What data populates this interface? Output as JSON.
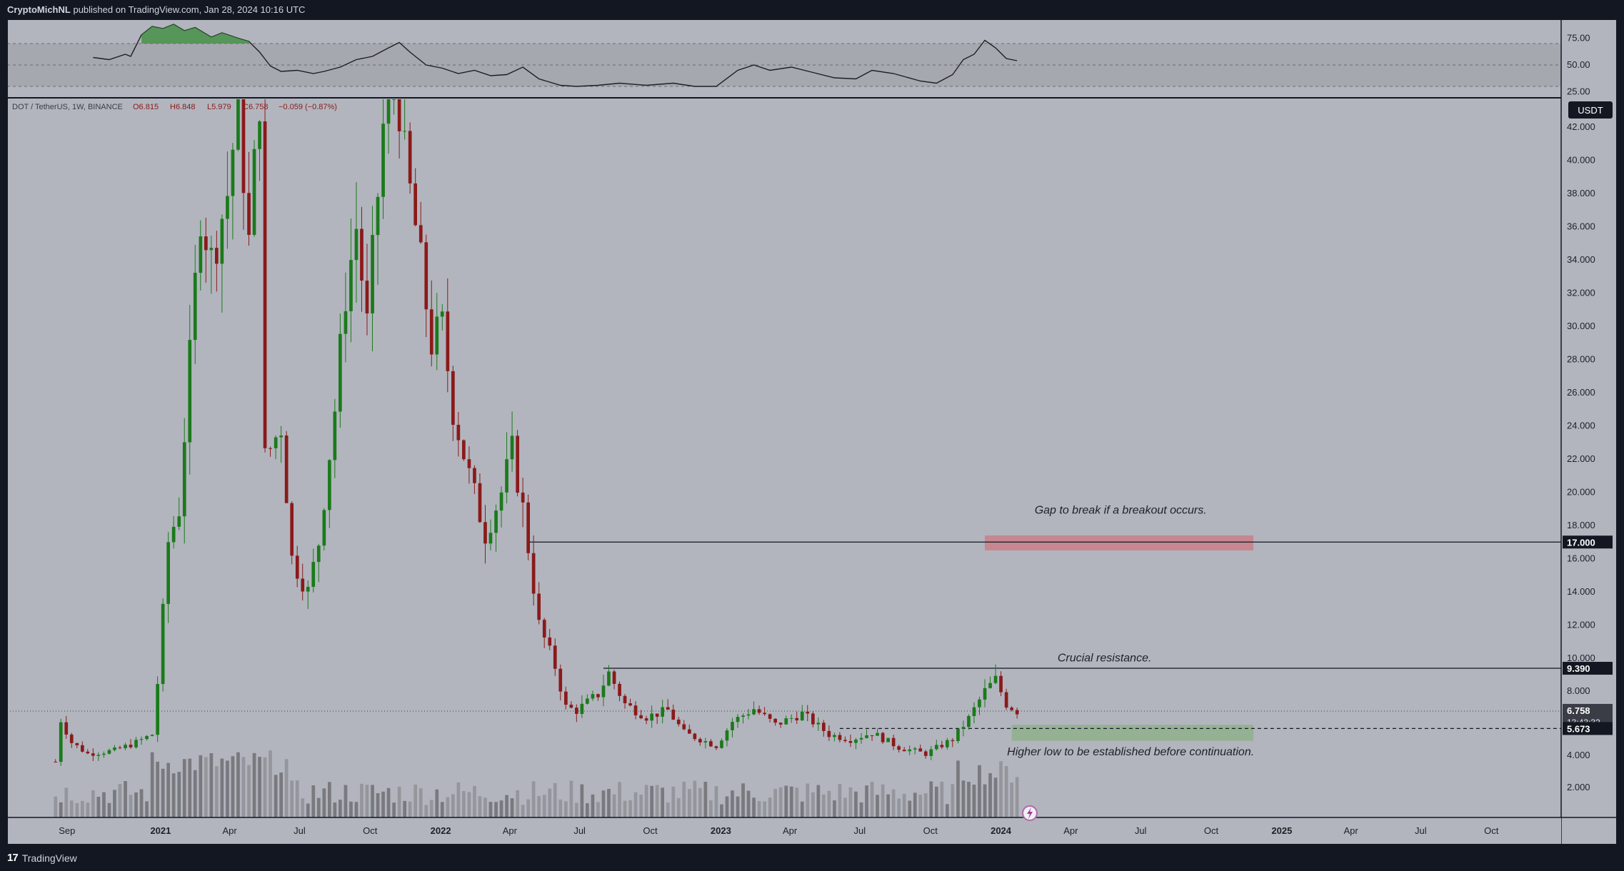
{
  "header": {
    "author": "CryptoMichNL",
    "published_text": "published on TradingView.com, Jan 28, 2024 10:16 UTC"
  },
  "footer": {
    "brand": "TradingView",
    "logo_icon": "tradingview-logo-icon"
  },
  "colors": {
    "background": "#b2b5be",
    "frame": "#131722",
    "up": "#1b7a1b",
    "down": "#8b1a1a",
    "volume_up": "#6e6f73",
    "volume_down": "#8f9096",
    "rsi_band": "#a3a6ae",
    "gap_zone": "#c97f88",
    "support_zone": "#8fb08c"
  },
  "chart_data": {
    "type": "candlestick",
    "symbol_line": {
      "symbol": "DOT / TetherUS, 1W, BINANCE",
      "open": "O6.815",
      "high": "H6.848",
      "low": "L5.979",
      "close": "C6.758",
      "change": "−0.059 (−0.87%)"
    },
    "currency": "USDT",
    "y_axis": {
      "ticks": [
        "42.000",
        "40.000",
        "38.000",
        "36.000",
        "34.000",
        "32.000",
        "30.000",
        "28.000",
        "26.000",
        "24.000",
        "22.000",
        "20.000",
        "18.000",
        "16.000",
        "14.000",
        "12.000",
        "10.000",
        "8.000",
        "4.000",
        "2.000"
      ],
      "ylim": [
        0,
        43.5
      ]
    },
    "x_axis": {
      "ticks": [
        {
          "label": "Sep",
          "bold": false,
          "date": "2020-09-01"
        },
        {
          "label": "2021",
          "bold": true,
          "date": "2021-01-01"
        },
        {
          "label": "Apr",
          "bold": false,
          "date": "2021-04-01"
        },
        {
          "label": "Jul",
          "bold": false,
          "date": "2021-07-01"
        },
        {
          "label": "Oct",
          "bold": false,
          "date": "2021-10-01"
        },
        {
          "label": "2022",
          "bold": true,
          "date": "2022-01-01"
        },
        {
          "label": "Apr",
          "bold": false,
          "date": "2022-04-01"
        },
        {
          "label": "Jul",
          "bold": false,
          "date": "2022-07-01"
        },
        {
          "label": "Oct",
          "bold": false,
          "date": "2022-10-01"
        },
        {
          "label": "2023",
          "bold": true,
          "date": "2023-01-01"
        },
        {
          "label": "Apr",
          "bold": false,
          "date": "2023-04-01"
        },
        {
          "label": "Jul",
          "bold": false,
          "date": "2023-07-01"
        },
        {
          "label": "Oct",
          "bold": false,
          "date": "2023-10-01"
        },
        {
          "label": "2024",
          "bold": true,
          "date": "2024-01-01"
        },
        {
          "label": "Apr",
          "bold": false,
          "date": "2024-04-01"
        },
        {
          "label": "Jul",
          "bold": false,
          "date": "2024-07-01"
        },
        {
          "label": "Oct",
          "bold": false,
          "date": "2024-10-01"
        },
        {
          "label": "2025",
          "bold": true,
          "date": "2025-01-01"
        },
        {
          "label": "Apr",
          "bold": false,
          "date": "2025-04-01"
        },
        {
          "label": "Jul",
          "bold": false,
          "date": "2025-07-01"
        },
        {
          "label": "Oct",
          "bold": false,
          "date": "2025-10-01"
        }
      ],
      "xlim": [
        "2020-06-15",
        "2025-12-31"
      ]
    },
    "price_anchors": [
      [
        "2020-08-17",
        3.6
      ],
      [
        "2020-08-24",
        6.2
      ],
      [
        "2020-09-07",
        4.8
      ],
      [
        "2020-09-28",
        4.1
      ],
      [
        "2020-11-02",
        4.3
      ],
      [
        "2020-11-30",
        4.8
      ],
      [
        "2020-12-21",
        5.3
      ],
      [
        "2020-12-28",
        8.5
      ],
      [
        "2021-01-11",
        17.0
      ],
      [
        "2021-01-25",
        19.0
      ],
      [
        "2021-02-08",
        28.0
      ],
      [
        "2021-02-22",
        37.0
      ],
      [
        "2021-03-08",
        34.0
      ],
      [
        "2021-03-29",
        38.0
      ],
      [
        "2021-04-12",
        43.5
      ],
      [
        "2021-04-26",
        35.0
      ],
      [
        "2021-05-10",
        44.0
      ],
      [
        "2021-05-17",
        22.0
      ],
      [
        "2021-06-07",
        24.0
      ],
      [
        "2021-06-21",
        16.0
      ],
      [
        "2021-07-12",
        14.0
      ],
      [
        "2021-07-26",
        17.0
      ],
      [
        "2021-08-16",
        25.0
      ],
      [
        "2021-08-30",
        32.0
      ],
      [
        "2021-09-13",
        36.0
      ],
      [
        "2021-09-27",
        30.0
      ],
      [
        "2021-10-18",
        42.0
      ],
      [
        "2021-11-01",
        47.0
      ],
      [
        "2021-11-15",
        40.0
      ],
      [
        "2021-11-29",
        36.0
      ],
      [
        "2021-12-20",
        29.0
      ],
      [
        "2022-01-03",
        30.0
      ],
      [
        "2022-01-17",
        25.0
      ],
      [
        "2022-02-07",
        21.0
      ],
      [
        "2022-02-28",
        17.5
      ],
      [
        "2022-03-21",
        20.0
      ],
      [
        "2022-04-04",
        22.5
      ],
      [
        "2022-04-18",
        19.0
      ],
      [
        "2022-05-09",
        12.0
      ],
      [
        "2022-05-30",
        9.5
      ],
      [
        "2022-06-13",
        7.0
      ],
      [
        "2022-06-27",
        6.8
      ],
      [
        "2022-07-25",
        7.8
      ],
      [
        "2022-08-08",
        9.1
      ],
      [
        "2022-08-29",
        7.2
      ],
      [
        "2022-09-26",
        6.4
      ],
      [
        "2022-10-24",
        6.8
      ],
      [
        "2022-11-14",
        5.4
      ],
      [
        "2022-12-26",
        4.6
      ],
      [
        "2023-01-16",
        6.1
      ],
      [
        "2023-02-13",
        6.9
      ],
      [
        "2023-03-13",
        5.9
      ],
      [
        "2023-04-17",
        6.6
      ],
      [
        "2023-05-22",
        5.3
      ],
      [
        "2023-06-19",
        5.0
      ],
      [
        "2023-07-17",
        5.4
      ],
      [
        "2023-08-21",
        4.5
      ],
      [
        "2023-09-25",
        4.1
      ],
      [
        "2023-10-30",
        5.0
      ],
      [
        "2023-11-20",
        6.3
      ],
      [
        "2023-12-11",
        8.0
      ],
      [
        "2023-12-25",
        8.7
      ],
      [
        "2024-01-08",
        7.2
      ],
      [
        "2024-01-22",
        6.758
      ]
    ],
    "rsi": {
      "ticks": [
        "75.00",
        "50.00",
        "25.00"
      ],
      "band": [
        30,
        70
      ],
      "ylim": [
        22,
        90
      ],
      "series": [
        [
          "2020-10-05",
          57
        ],
        [
          "2020-10-26",
          55
        ],
        [
          "2020-11-16",
          60
        ],
        [
          "2020-11-23",
          58
        ],
        [
          "2020-12-07",
          78
        ],
        [
          "2020-12-21",
          86
        ],
        [
          "2021-01-04",
          84
        ],
        [
          "2021-01-18",
          88
        ],
        [
          "2021-02-01",
          82
        ],
        [
          "2021-02-15",
          85
        ],
        [
          "2021-03-08",
          76
        ],
        [
          "2021-03-22",
          80
        ],
        [
          "2021-04-12",
          75
        ],
        [
          "2021-04-26",
          72
        ],
        [
          "2021-05-10",
          62
        ],
        [
          "2021-05-24",
          49
        ],
        [
          "2021-06-07",
          44
        ],
        [
          "2021-06-28",
          45
        ],
        [
          "2021-07-19",
          42
        ],
        [
          "2021-08-02",
          44
        ],
        [
          "2021-08-23",
          48
        ],
        [
          "2021-09-13",
          55
        ],
        [
          "2021-10-04",
          58
        ],
        [
          "2021-10-25",
          66
        ],
        [
          "2021-11-08",
          71
        ],
        [
          "2021-11-22",
          62
        ],
        [
          "2021-12-13",
          50
        ],
        [
          "2022-01-03",
          47
        ],
        [
          "2022-01-24",
          42
        ],
        [
          "2022-02-14",
          45
        ],
        [
          "2022-03-07",
          40
        ],
        [
          "2022-03-28",
          41
        ],
        [
          "2022-04-18",
          48
        ],
        [
          "2022-05-09",
          37
        ],
        [
          "2022-06-06",
          31
        ],
        [
          "2022-06-27",
          30
        ],
        [
          "2022-07-25",
          31
        ],
        [
          "2022-08-22",
          33
        ],
        [
          "2022-09-26",
          31
        ],
        [
          "2022-10-31",
          33
        ],
        [
          "2022-11-28",
          30
        ],
        [
          "2022-12-26",
          30
        ],
        [
          "2023-01-23",
          45
        ],
        [
          "2023-02-13",
          50
        ],
        [
          "2023-03-06",
          45
        ],
        [
          "2023-04-03",
          48
        ],
        [
          "2023-05-01",
          43
        ],
        [
          "2023-05-29",
          38
        ],
        [
          "2023-06-26",
          37
        ],
        [
          "2023-07-17",
          45
        ],
        [
          "2023-08-14",
          42
        ],
        [
          "2023-09-18",
          35
        ],
        [
          "2023-10-09",
          33
        ],
        [
          "2023-10-30",
          41
        ],
        [
          "2023-11-13",
          55
        ],
        [
          "2023-11-27",
          60
        ],
        [
          "2023-12-11",
          73
        ],
        [
          "2023-12-25",
          66
        ],
        [
          "2024-01-08",
          56
        ],
        [
          "2024-01-22",
          54
        ]
      ]
    },
    "horizontal_lines": [
      {
        "label": "17.000",
        "value": 17.0,
        "from": "2022-04-25",
        "style": "solid"
      },
      {
        "label": "9.390",
        "value": 9.39,
        "from": "2022-08-01",
        "style": "solid"
      },
      {
        "label": "5.673",
        "value": 5.673,
        "from": "2023-06-05",
        "style": "dashed"
      }
    ],
    "last_price": {
      "label": "6.758",
      "value": 6.758,
      "countdown": "13:43:32"
    },
    "zones": [
      {
        "kind": "gap",
        "from": "2023-12-11",
        "to": "2024-11-25",
        "low": 16.5,
        "high": 17.4
      },
      {
        "kind": "support",
        "from": "2024-01-15",
        "to": "2024-11-25",
        "low": 4.9,
        "high": 5.9
      }
    ],
    "annotations": [
      {
        "text": "Gap to break if a breakout occurs.",
        "date": "2024-06-05",
        "value": 18.7
      },
      {
        "text": "Crucial resistance.",
        "date": "2024-05-15",
        "value": 9.8
      },
      {
        "text": "Higher low to be established before continuation.",
        "date": "2024-06-18",
        "value": 4.0
      }
    ]
  }
}
